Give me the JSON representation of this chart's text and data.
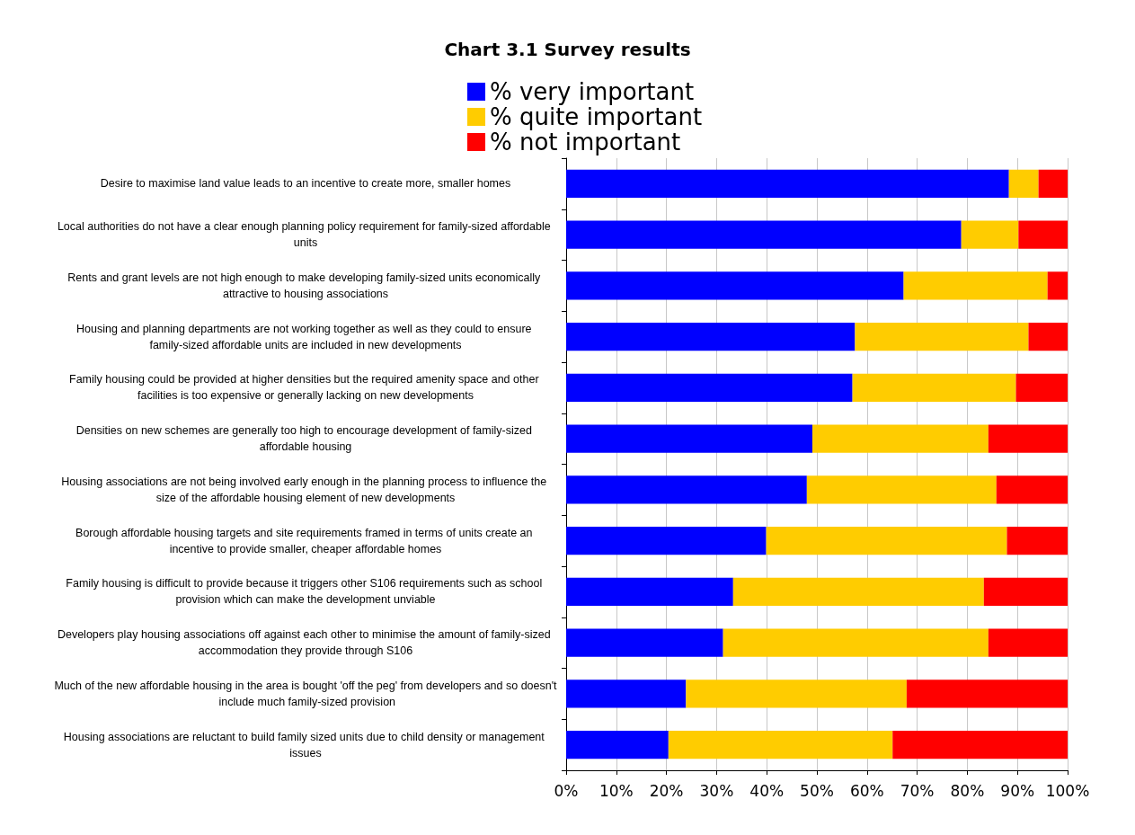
{
  "chart_data": {
    "type": "bar",
    "orientation": "horizontal",
    "stacked": true,
    "title": "Chart 3.1 Survey results",
    "categories": [
      "Desire to maximise land value leads to an incentive to create more, smaller homes",
      "Local authorities do not have a clear enough planning policy requirement for family-sized affordable units",
      "Rents and grant levels are not high enough to make developing family-sized units economically attractive to housing associations",
      "Housing and planning departments are not working together as well as they could to ensure family-sized affordable units are included in new developments",
      "Family housing could be provided at higher densities but the required amenity space and other facilities is too expensive or generally lacking on new developments",
      "Densities on new schemes are generally too high to encourage development of family-sized affordable housing",
      "Housing associations are not being involved early enough in the planning process to influence the size of the affordable housing element of new developments",
      "Borough affordable housing targets and site requirements framed in terms of units create an incentive to provide smaller, cheaper affordable homes",
      "Family housing is difficult to provide because it triggers other S106 requirements such as school provision which can make the development unviable",
      "Developers play housing associations off against each other to minimise the amount of family-sized accommodation they provide through S106",
      "Much of the new affordable housing in the area is bought 'off the peg' from developers and so doesn't include much family-sized provision",
      "Housing associations are reluctant to build family sized units due to child density or management issues"
    ],
    "series": [
      {
        "name": "% very important",
        "color": "#0000ff",
        "values": [
          88.3,
          78.8,
          67.3,
          57.6,
          57.1,
          49.1,
          48.0,
          39.9,
          33.3,
          31.3,
          23.9,
          20.4
        ]
      },
      {
        "name": "% quite important",
        "color": "#ffcc00",
        "values": [
          5.9,
          11.4,
          28.7,
          34.6,
          32.6,
          35.1,
          37.8,
          48.0,
          50.0,
          52.9,
          44.0,
          44.7
        ]
      },
      {
        "name": "% not important",
        "color": "#ff0000",
        "values": [
          5.8,
          9.8,
          4.0,
          7.8,
          10.3,
          15.8,
          14.2,
          12.1,
          16.7,
          15.8,
          32.1,
          34.9
        ]
      }
    ],
    "xlim": [
      0,
      100
    ],
    "xticks": [
      {
        "value": 0,
        "label": "0%"
      },
      {
        "value": 10,
        "label": "10%"
      },
      {
        "value": 20,
        "label": "20%"
      },
      {
        "value": 30,
        "label": "30%"
      },
      {
        "value": 40,
        "label": "40%"
      },
      {
        "value": 50,
        "label": "50%"
      },
      {
        "value": 60,
        "label": "60%"
      },
      {
        "value": 70,
        "label": "70%"
      },
      {
        "value": 80,
        "label": "80%"
      },
      {
        "value": 90,
        "label": "90%"
      },
      {
        "value": 100,
        "label": "100%"
      }
    ],
    "grid": "x",
    "legend": "top"
  }
}
